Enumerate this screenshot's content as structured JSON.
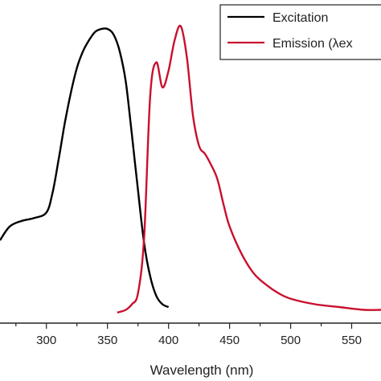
{
  "chart_data": {
    "type": "line",
    "xlabel": "Wavelength (nm)",
    "ylabel": "",
    "xlim": [
      262,
      574
    ],
    "ylim": [
      0,
      1
    ],
    "x_ticks": [
      "300",
      "350",
      "400",
      "450",
      "500",
      "550"
    ],
    "legend": {
      "placement": "top-right"
    },
    "series": [
      {
        "name": "Excitation",
        "color": "#000000",
        "x": [
          262,
          270,
          280,
          290,
          300,
          305,
          310,
          315,
          320,
          325,
          330,
          335,
          340,
          345,
          350,
          355,
          360,
          365,
          370,
          375,
          380,
          385,
          390,
          395,
          400
        ],
        "y": [
          0.24,
          0.29,
          0.31,
          0.32,
          0.34,
          0.41,
          0.53,
          0.66,
          0.77,
          0.86,
          0.92,
          0.96,
          0.99,
          1.0,
          1.0,
          0.98,
          0.92,
          0.81,
          0.62,
          0.42,
          0.23,
          0.11,
          0.04,
          0.01,
          0.0
        ]
      },
      {
        "name": "Emission (λex",
        "color": "#c8102e",
        "x": [
          358,
          365,
          370,
          375,
          380,
          385,
          390,
          395,
          400,
          405,
          410,
          415,
          420,
          425,
          430,
          435,
          440,
          445,
          450,
          460,
          470,
          480,
          490,
          500,
          520,
          540,
          560,
          574
        ],
        "y": [
          -0.02,
          -0.01,
          0.01,
          0.05,
          0.25,
          0.76,
          0.88,
          0.79,
          0.85,
          0.96,
          1.01,
          0.9,
          0.69,
          0.58,
          0.55,
          0.51,
          0.46,
          0.37,
          0.29,
          0.19,
          0.12,
          0.08,
          0.05,
          0.03,
          0.01,
          0.0,
          -0.01,
          -0.01
        ]
      }
    ]
  }
}
